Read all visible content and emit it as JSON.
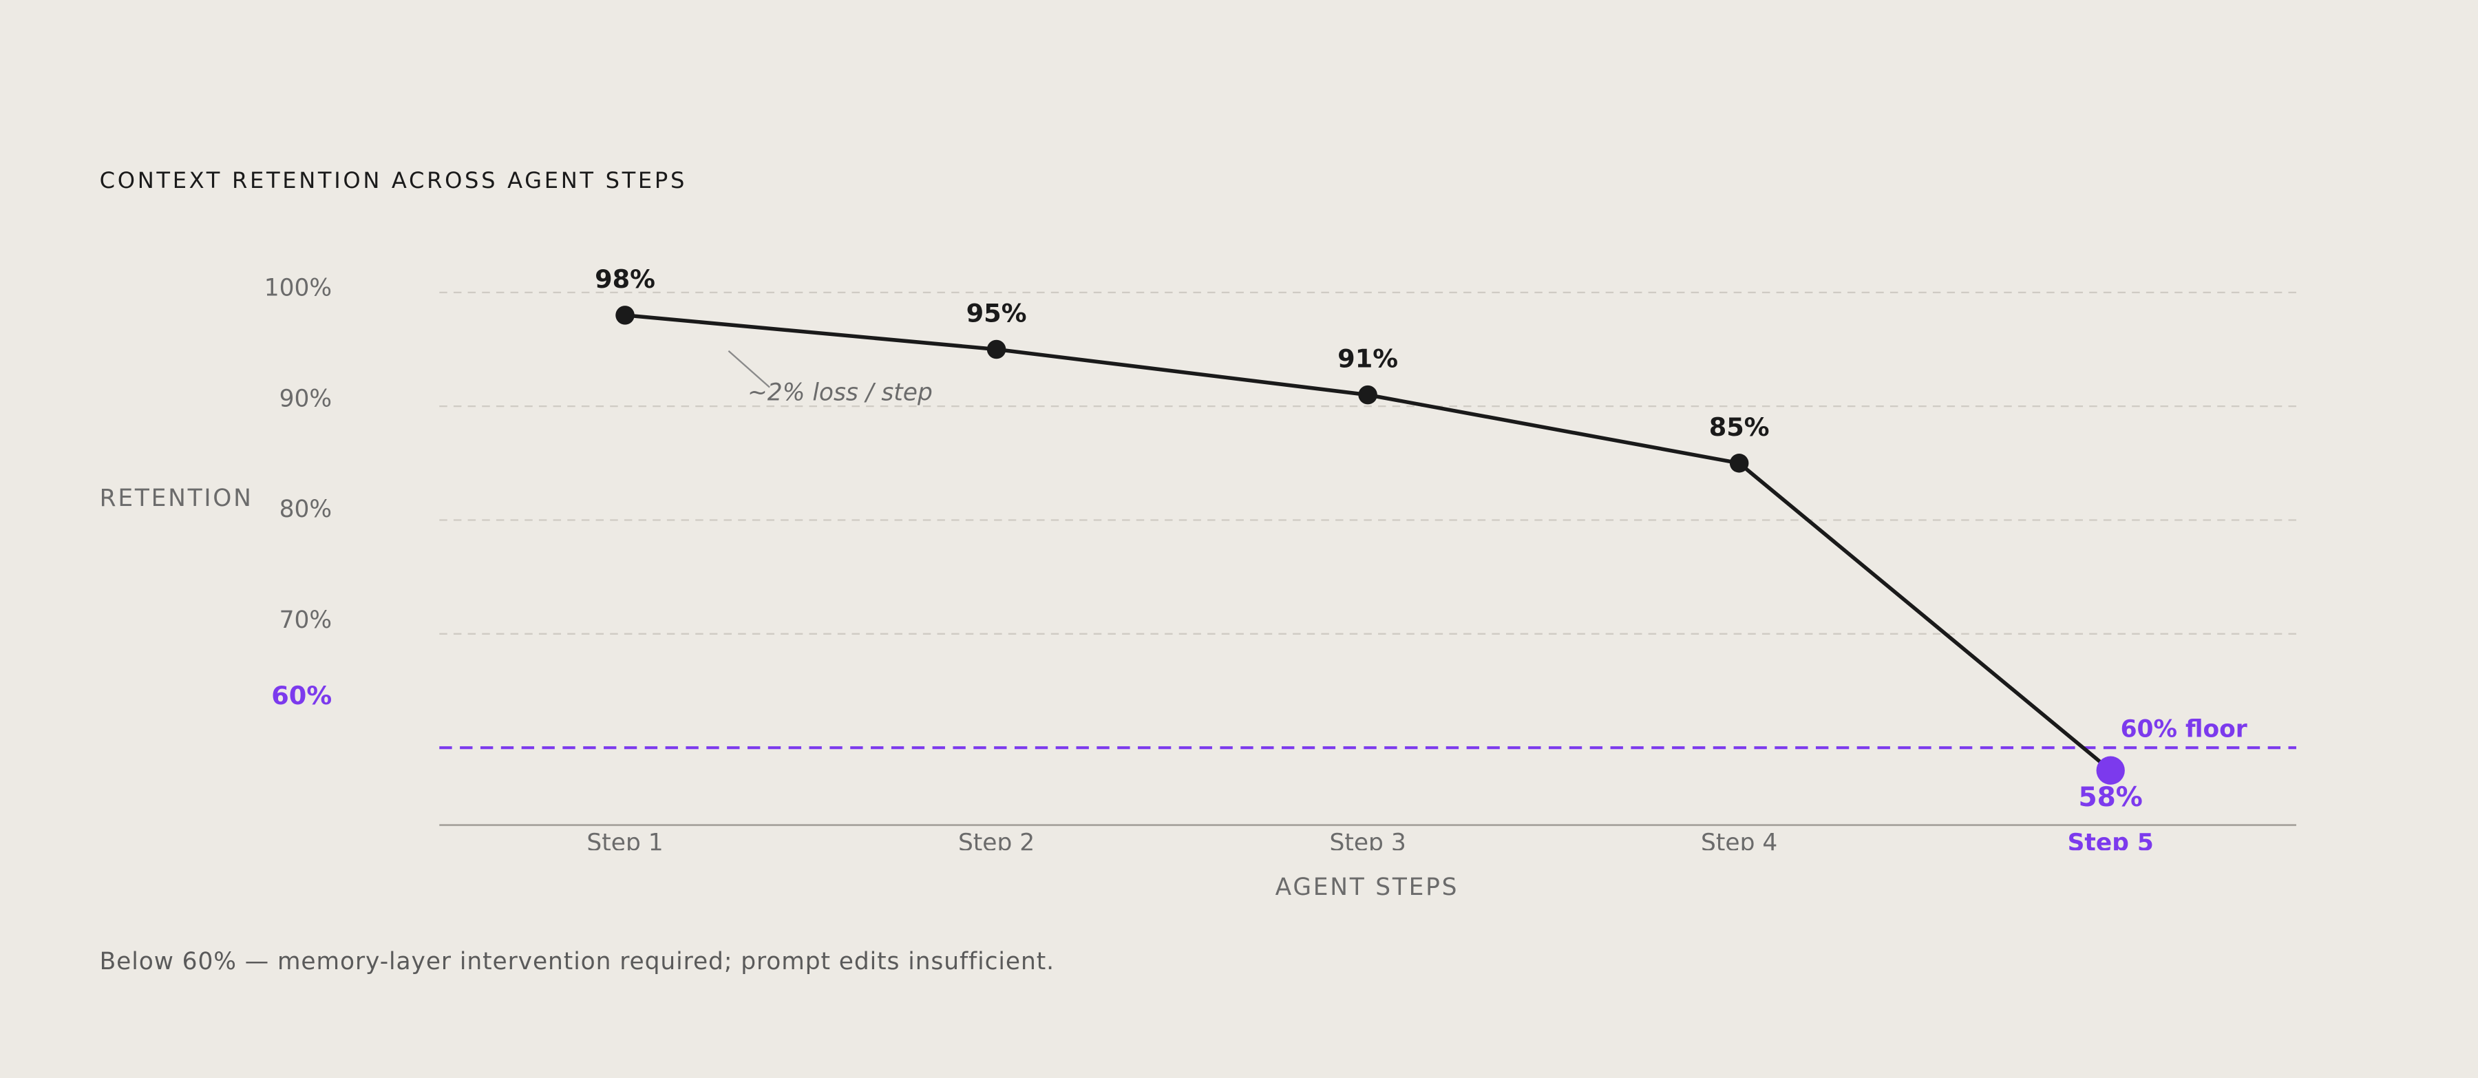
{
  "chart_data": {
    "type": "line",
    "title": "CONTEXT RETENTION ACROSS AGENT STEPS",
    "x_label": "AGENT STEPS",
    "y_label": "RETENTION",
    "categories": [
      "Step 1",
      "Step 2",
      "Step 3",
      "Step 4",
      "Step 5"
    ],
    "series": [
      {
        "name": "Retention",
        "color": "#1a1a1a",
        "values": [
          98,
          95,
          91,
          85,
          58
        ],
        "value_labels": [
          "98%",
          "95%",
          "91%",
          "85%",
          "58%"
        ],
        "point_colors": [
          "#1a1a1a",
          "#1a1a1a",
          "#1a1a1a",
          "#1a1a1a",
          "#7c3aed"
        ]
      }
    ],
    "ylim": [
      53.2,
      100
    ],
    "yticks": [
      {
        "value": 100,
        "label": "100%"
      },
      {
        "value": 90,
        "label": "90%"
      },
      {
        "value": 80,
        "label": "80%"
      },
      {
        "value": 70,
        "label": "70%"
      },
      {
        "value": 60,
        "label": "60%"
      }
    ],
    "grid": true,
    "threshold": {
      "value": 60,
      "label": "60% floor",
      "color": "#7c3aed"
    },
    "annotation": "~2% loss / step",
    "footnote": "Below 60% — memory-layer intervention required; prompt edits insufficient."
  }
}
